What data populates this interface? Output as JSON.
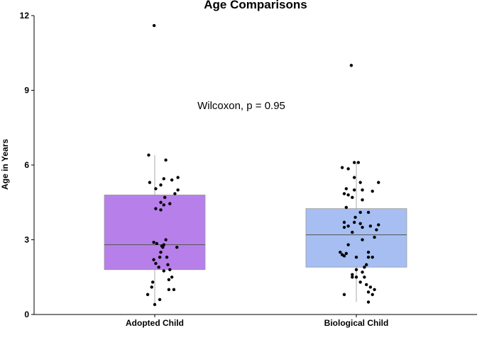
{
  "chart_data": {
    "type": "box",
    "title": "Age Comparisons",
    "xlabel": "",
    "ylabel": "Age in Years",
    "ylim": [
      0,
      12
    ],
    "yticks": [
      0,
      3,
      6,
      9,
      12
    ],
    "annotation": "Wilcoxon, p = 0.95",
    "grid": false,
    "categories": [
      "Adopted Child",
      "Biological Child"
    ],
    "box_colors": [
      "#b77fea",
      "#a6bef2"
    ],
    "boxes": [
      {
        "category": "Adopted Child",
        "min": 0.35,
        "q1": 1.8,
        "median": 2.8,
        "q3": 4.8,
        "max": 6.4
      },
      {
        "category": "Biological Child",
        "min": 0.5,
        "q1": 1.9,
        "median": 3.2,
        "q3": 4.25,
        "max": 6.1
      }
    ],
    "points": [
      {
        "g": 0,
        "x": -0.003,
        "y": 11.6
      },
      {
        "g": 0,
        "x": -0.03,
        "y": 6.4
      },
      {
        "g": 0,
        "x": 0.055,
        "y": 6.2
      },
      {
        "g": 0,
        "x": 0.115,
        "y": 5.5
      },
      {
        "g": 0,
        "x": 0.045,
        "y": 5.45
      },
      {
        "g": 0,
        "x": 0.085,
        "y": 5.4
      },
      {
        "g": 0,
        "x": -0.025,
        "y": 5.3
      },
      {
        "g": 0,
        "x": 0.03,
        "y": 5.2
      },
      {
        "g": 0,
        "x": 0.005,
        "y": 5.05
      },
      {
        "g": 0,
        "x": 0.115,
        "y": 5.0
      },
      {
        "g": 0,
        "x": 0.1,
        "y": 4.85
      },
      {
        "g": 0,
        "x": 0.05,
        "y": 4.7
      },
      {
        "g": 0,
        "x": 0.03,
        "y": 4.5
      },
      {
        "g": 0,
        "x": 0.075,
        "y": 4.45
      },
      {
        "g": 0,
        "x": 0.045,
        "y": 4.4
      },
      {
        "g": 0,
        "x": 0.005,
        "y": 4.25
      },
      {
        "g": 0,
        "x": 0.03,
        "y": 4.2
      },
      {
        "g": 0,
        "x": 0.055,
        "y": 3.0
      },
      {
        "g": 0,
        "x": -0.005,
        "y": 2.9
      },
      {
        "g": 0,
        "x": 0.01,
        "y": 2.85
      },
      {
        "g": 0,
        "x": 0.045,
        "y": 2.8
      },
      {
        "g": 0,
        "x": 0.035,
        "y": 2.75
      },
      {
        "g": 0,
        "x": 0.04,
        "y": 2.7
      },
      {
        "g": 0,
        "x": 0.11,
        "y": 2.7
      },
      {
        "g": 0,
        "x": 0.03,
        "y": 2.5
      },
      {
        "g": 0,
        "x": 0.025,
        "y": 2.3
      },
      {
        "g": 0,
        "x": 0.06,
        "y": 2.3
      },
      {
        "g": 0,
        "x": -0.005,
        "y": 2.2
      },
      {
        "g": 0,
        "x": 0.005,
        "y": 2.05
      },
      {
        "g": 0,
        "x": 0.065,
        "y": 2.0
      },
      {
        "g": 0,
        "x": 0.02,
        "y": 1.9
      },
      {
        "g": 0,
        "x": 0.075,
        "y": 1.8
      },
      {
        "g": 0,
        "x": 0.045,
        "y": 1.75
      },
      {
        "g": 0,
        "x": 0.085,
        "y": 1.5
      },
      {
        "g": 0,
        "x": 0.07,
        "y": 1.4
      },
      {
        "g": 0,
        "x": -0.01,
        "y": 1.3
      },
      {
        "g": 0,
        "x": -0.015,
        "y": 1.1
      },
      {
        "g": 0,
        "x": 0.07,
        "y": 1.0
      },
      {
        "g": 0,
        "x": 0.095,
        "y": 1.0
      },
      {
        "g": 0,
        "x": -0.035,
        "y": 0.8
      },
      {
        "g": 0,
        "x": 0.025,
        "y": 0.6
      },
      {
        "g": 0,
        "x": 0.0,
        "y": 0.4
      },
      {
        "g": 1,
        "x": -0.025,
        "y": 10.0
      },
      {
        "g": 1,
        "x": -0.01,
        "y": 6.1
      },
      {
        "g": 1,
        "x": 0.01,
        "y": 6.1
      },
      {
        "g": 1,
        "x": -0.07,
        "y": 5.9
      },
      {
        "g": 1,
        "x": -0.04,
        "y": 5.85
      },
      {
        "g": 1,
        "x": -0.01,
        "y": 5.5
      },
      {
        "g": 1,
        "x": 0.02,
        "y": 5.3
      },
      {
        "g": 1,
        "x": 0.11,
        "y": 5.3
      },
      {
        "g": 1,
        "x": -0.05,
        "y": 5.05
      },
      {
        "g": 1,
        "x": -0.01,
        "y": 5.0
      },
      {
        "g": 1,
        "x": 0.03,
        "y": 5.0
      },
      {
        "g": 1,
        "x": 0.08,
        "y": 4.95
      },
      {
        "g": 1,
        "x": -0.06,
        "y": 4.85
      },
      {
        "g": 1,
        "x": -0.04,
        "y": 4.8
      },
      {
        "g": 1,
        "x": -0.02,
        "y": 4.7
      },
      {
        "g": 1,
        "x": 0.03,
        "y": 4.6
      },
      {
        "g": 1,
        "x": -0.05,
        "y": 4.3
      },
      {
        "g": 1,
        "x": 0.02,
        "y": 4.1
      },
      {
        "g": 1,
        "x": 0.06,
        "y": 4.1
      },
      {
        "g": 1,
        "x": -0.005,
        "y": 3.9
      },
      {
        "g": 1,
        "x": -0.06,
        "y": 3.7
      },
      {
        "g": 1,
        "x": -0.01,
        "y": 3.7
      },
      {
        "g": 1,
        "x": 0.02,
        "y": 3.65
      },
      {
        "g": 1,
        "x": 0.11,
        "y": 3.6
      },
      {
        "g": 1,
        "x": -0.04,
        "y": 3.55
      },
      {
        "g": 1,
        "x": 0.07,
        "y": 3.55
      },
      {
        "g": 1,
        "x": -0.06,
        "y": 3.5
      },
      {
        "g": 1,
        "x": 0.03,
        "y": 3.5
      },
      {
        "g": 1,
        "x": 0.1,
        "y": 3.4
      },
      {
        "g": 1,
        "x": -0.02,
        "y": 3.3
      },
      {
        "g": 1,
        "x": 0.09,
        "y": 3.1
      },
      {
        "g": 1,
        "x": 0.03,
        "y": 3.0
      },
      {
        "g": 1,
        "x": -0.04,
        "y": 2.8
      },
      {
        "g": 1,
        "x": -0.08,
        "y": 2.5
      },
      {
        "g": 1,
        "x": 0.06,
        "y": 2.5
      },
      {
        "g": 1,
        "x": -0.05,
        "y": 2.45
      },
      {
        "g": 1,
        "x": -0.07,
        "y": 2.4
      },
      {
        "g": 1,
        "x": -0.06,
        "y": 2.35
      },
      {
        "g": 1,
        "x": 0.06,
        "y": 2.3
      },
      {
        "g": 1,
        "x": 0.08,
        "y": 2.3
      },
      {
        "g": 1,
        "x": 0.0,
        "y": 2.3
      },
      {
        "g": 1,
        "x": 0.05,
        "y": 2.0
      },
      {
        "g": 1,
        "x": 0.04,
        "y": 1.9
      },
      {
        "g": 1,
        "x": 0.0,
        "y": 1.8
      },
      {
        "g": 1,
        "x": 0.03,
        "y": 1.7
      },
      {
        "g": 1,
        "x": -0.02,
        "y": 1.6
      },
      {
        "g": 1,
        "x": -0.02,
        "y": 1.5
      },
      {
        "g": 1,
        "x": 0.0,
        "y": 1.5
      },
      {
        "g": 1,
        "x": 0.04,
        "y": 1.5
      },
      {
        "g": 1,
        "x": 0.02,
        "y": 1.3
      },
      {
        "g": 1,
        "x": 0.05,
        "y": 1.2
      },
      {
        "g": 1,
        "x": 0.07,
        "y": 1.1
      },
      {
        "g": 1,
        "x": 0.09,
        "y": 1.0
      },
      {
        "g": 1,
        "x": 0.06,
        "y": 0.9
      },
      {
        "g": 1,
        "x": -0.06,
        "y": 0.8
      },
      {
        "g": 1,
        "x": 0.08,
        "y": 0.8
      },
      {
        "g": 1,
        "x": 0.06,
        "y": 0.5
      }
    ]
  }
}
